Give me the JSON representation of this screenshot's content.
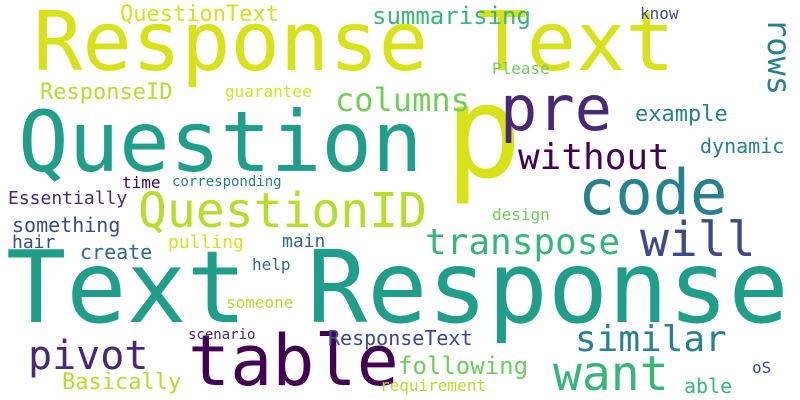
{
  "colors": {
    "background": "#ffffff",
    "palette": [
      "#440154",
      "#482878",
      "#3e4989",
      "#31688e",
      "#26828e",
      "#1f9e89",
      "#35b779",
      "#6ece58",
      "#b5de2b",
      "#d8e219"
    ]
  },
  "words": [
    {
      "text": "Response Text",
      "color": "#d8e219"
    },
    {
      "text": "Question",
      "color": "#1f9e89"
    },
    {
      "text": "p",
      "color": "#d8e219"
    },
    {
      "text": "pre",
      "color": "#482878"
    },
    {
      "text": "Text Response",
      "color": "#1f9e89"
    },
    {
      "text": "table",
      "color": "#440154"
    },
    {
      "text": "code",
      "color": "#26828e"
    },
    {
      "text": "QuestionID",
      "color": "#b5de2b"
    },
    {
      "text": "will",
      "color": "#3e4989"
    },
    {
      "text": "want",
      "color": "#35b779"
    },
    {
      "text": "pivot",
      "color": "#482878"
    },
    {
      "text": "transpose",
      "color": "#35b779"
    },
    {
      "text": "without",
      "color": "#440154"
    },
    {
      "text": "similar",
      "color": "#26828e"
    },
    {
      "text": "columns",
      "color": "#6ece58"
    },
    {
      "text": "rows",
      "color": "#26828e"
    },
    {
      "text": "QuestionText",
      "color": "#d8e219"
    },
    {
      "text": "summarising",
      "color": "#35b779"
    },
    {
      "text": "ResponseID",
      "color": "#b5de2b"
    },
    {
      "text": "example",
      "color": "#26828e"
    },
    {
      "text": "dynamic",
      "color": "#26828e"
    },
    {
      "text": "following",
      "color": "#6ece58"
    },
    {
      "text": "ResponseText",
      "color": "#3e4989"
    },
    {
      "text": "Basically",
      "color": "#b5de2b"
    },
    {
      "text": "something",
      "color": "#3e4989"
    },
    {
      "text": "Essentially",
      "color": "#482878"
    },
    {
      "text": "create",
      "color": "#31688e"
    },
    {
      "text": "main",
      "color": "#31688e"
    },
    {
      "text": "pulling",
      "color": "#d8e219"
    },
    {
      "text": "hair",
      "color": "#3e4989"
    },
    {
      "text": "guarantee",
      "color": "#d8e219"
    },
    {
      "text": "Please",
      "color": "#6ece58"
    },
    {
      "text": "know",
      "color": "#3e4989"
    },
    {
      "text": "time",
      "color": "#440154"
    },
    {
      "text": "corresponding",
      "color": "#26828e"
    },
    {
      "text": "design",
      "color": "#6ece58"
    },
    {
      "text": "help",
      "color": "#31688e"
    },
    {
      "text": "someone",
      "color": "#b5de2b"
    },
    {
      "text": "scenario",
      "color": "#482878"
    },
    {
      "text": "requirement",
      "color": "#b5de2b"
    },
    {
      "text": "able",
      "color": "#35b779"
    },
    {
      "text": "oS",
      "color": "#3e4989"
    }
  ]
}
